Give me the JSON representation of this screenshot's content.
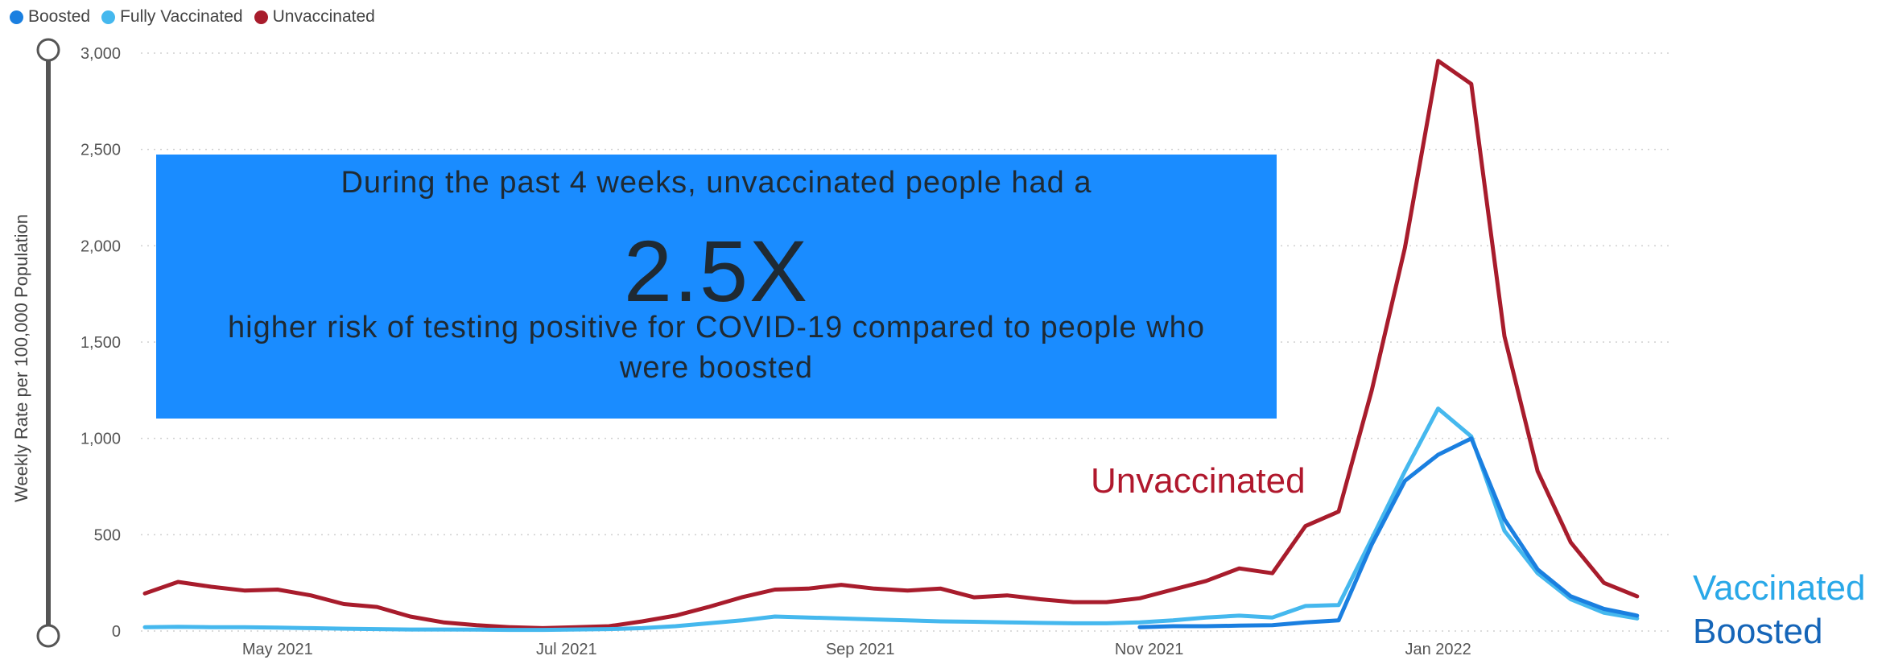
{
  "legend": {
    "boosted": "Boosted",
    "vaccinated": "Fully Vaccinated",
    "unvaccinated": "Unvaccinated"
  },
  "callout": {
    "line1": "During the past 4 weeks, unvaccinated people had a",
    "big": "2.5X",
    "line2": "higher risk of testing positive for COVID-19 compared to people who were boosted"
  },
  "labels": {
    "unvaccinated": "Unvaccinated",
    "vaccinated": "Vaccinated",
    "boosted": "Boosted"
  },
  "chart_data": {
    "type": "line",
    "ylabel": "Weekly Rate per 100,000 Population",
    "ylim": [
      0,
      3000
    ],
    "yticks": [
      0,
      500,
      1000,
      1500,
      2000,
      2500,
      3000
    ],
    "ytick_labels": [
      "0",
      "500",
      "1,000",
      "1,500",
      "2,000",
      "2,500",
      "3,000"
    ],
    "xlim": [
      "2021-04-03",
      "2022-02-19"
    ],
    "xticks": [
      "2021-05-01",
      "2021-07-01",
      "2021-09-01",
      "2021-11-01",
      "2022-01-01"
    ],
    "xtick_labels": [
      "May 2021",
      "Jul 2021",
      "Sep 2021",
      "Nov 2021",
      "Jan 2022"
    ],
    "grid": true,
    "legend_position": "top-left",
    "colors": {
      "unvaccinated": "#a81c2c",
      "vaccinated": "#45b8ee",
      "boosted": "#1a7fe0"
    },
    "series": [
      {
        "key": "unvaccinated",
        "name": "Unvaccinated",
        "x": [
          "2021-04-03",
          "2021-04-10",
          "2021-04-17",
          "2021-04-24",
          "2021-05-01",
          "2021-05-08",
          "2021-05-15",
          "2021-05-22",
          "2021-05-29",
          "2021-06-05",
          "2021-06-12",
          "2021-06-19",
          "2021-06-26",
          "2021-07-03",
          "2021-07-10",
          "2021-07-17",
          "2021-07-24",
          "2021-07-31",
          "2021-08-07",
          "2021-08-14",
          "2021-08-21",
          "2021-08-28",
          "2021-09-04",
          "2021-09-11",
          "2021-09-18",
          "2021-09-25",
          "2021-10-02",
          "2021-10-09",
          "2021-10-16",
          "2021-10-23",
          "2021-10-30",
          "2021-11-06",
          "2021-11-13",
          "2021-11-20",
          "2021-11-27",
          "2021-12-04",
          "2021-12-11",
          "2021-12-18",
          "2021-12-25",
          "2022-01-01",
          "2022-01-08",
          "2022-01-15",
          "2022-01-22",
          "2022-01-29",
          "2022-02-05",
          "2022-02-12",
          "2022-02-19"
        ],
        "values": [
          195,
          255,
          230,
          210,
          215,
          185,
          140,
          125,
          75,
          45,
          30,
          20,
          15,
          20,
          25,
          50,
          80,
          125,
          175,
          215,
          220,
          240,
          220,
          210,
          220,
          175,
          185,
          165,
          150,
          150,
          170,
          215,
          260,
          325,
          300,
          545,
          620,
          1250,
          1990,
          2960,
          2840,
          1530,
          830,
          460,
          250,
          180,
          null
        ]
      },
      {
        "key": "vaccinated",
        "name": "Vaccinated",
        "x": [
          "2021-04-03",
          "2021-04-10",
          "2021-04-17",
          "2021-04-24",
          "2021-05-01",
          "2021-05-08",
          "2021-05-15",
          "2021-05-22",
          "2021-05-29",
          "2021-06-05",
          "2021-06-12",
          "2021-06-19",
          "2021-06-26",
          "2021-07-03",
          "2021-07-10",
          "2021-07-17",
          "2021-07-24",
          "2021-07-31",
          "2021-08-07",
          "2021-08-14",
          "2021-08-21",
          "2021-08-28",
          "2021-09-04",
          "2021-09-11",
          "2021-09-18",
          "2021-09-25",
          "2021-10-02",
          "2021-10-09",
          "2021-10-16",
          "2021-10-23",
          "2021-10-30",
          "2021-11-06",
          "2021-11-13",
          "2021-11-20",
          "2021-11-27",
          "2021-12-04",
          "2021-12-11",
          "2021-12-18",
          "2021-12-25",
          "2022-01-01",
          "2022-01-08",
          "2022-01-15",
          "2022-01-22",
          "2022-01-29",
          "2022-02-05",
          "2022-02-12",
          "2022-02-19"
        ],
        "values": [
          20,
          22,
          20,
          20,
          18,
          15,
          12,
          10,
          8,
          8,
          7,
          6,
          6,
          8,
          10,
          15,
          25,
          40,
          55,
          75,
          70,
          65,
          60,
          55,
          50,
          48,
          45,
          42,
          40,
          40,
          45,
          55,
          70,
          80,
          70,
          130,
          135,
          480,
          830,
          1155,
          1010,
          520,
          300,
          165,
          95,
          65,
          null
        ]
      },
      {
        "key": "boosted",
        "name": "Boosted",
        "x": [
          "2021-10-30",
          "2021-11-06",
          "2021-11-13",
          "2021-11-20",
          "2021-11-27",
          "2021-12-04",
          "2021-12-11",
          "2021-12-18",
          "2021-12-25",
          "2022-01-01",
          "2022-01-08",
          "2022-01-15",
          "2022-01-22",
          "2022-01-29",
          "2022-02-05",
          "2022-02-12"
        ],
        "values": [
          20,
          25,
          25,
          28,
          30,
          45,
          55,
          450,
          780,
          915,
          1000,
          580,
          320,
          180,
          115,
          80
        ]
      }
    ]
  }
}
